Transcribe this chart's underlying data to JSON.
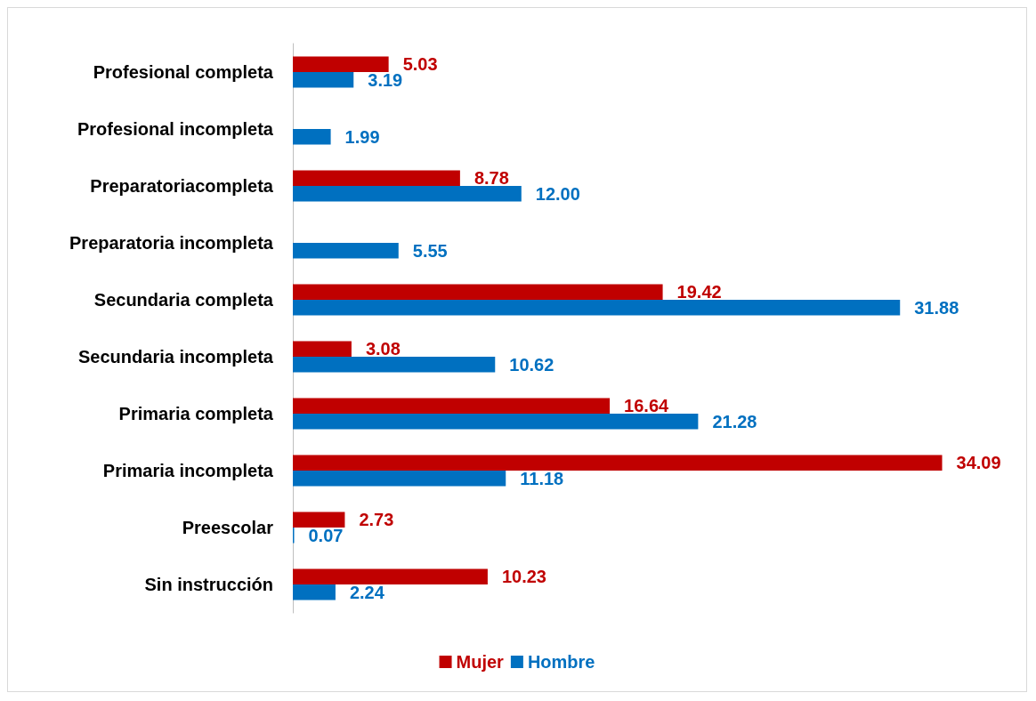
{
  "chart_data": {
    "type": "bar",
    "orientation": "horizontal",
    "categories": [
      "Profesional completa",
      "Profesional incompleta",
      "Preparatoriacompleta",
      "Preparatoria incompleta",
      "Secundaria completa",
      "Secundaria incompleta",
      "Primaria completa",
      "Primaria incompleta",
      "Preescolar",
      "Sin instrucción"
    ],
    "series": [
      {
        "name": "Mujer",
        "color": "#c00000",
        "values": [
          5.03,
          null,
          8.78,
          null,
          19.42,
          3.08,
          16.64,
          34.09,
          2.73,
          10.23
        ],
        "value_labels": [
          "5.03",
          null,
          "8.78",
          null,
          "19.42",
          "3.08",
          "16.64",
          "34.09",
          "2.73",
          "10.23"
        ]
      },
      {
        "name": "Hombre",
        "color": "#0070c0",
        "values": [
          3.19,
          1.99,
          12.0,
          5.55,
          31.88,
          10.62,
          21.28,
          11.18,
          0.07,
          2.24
        ],
        "value_labels": [
          "3.19",
          "1.99",
          "12.00",
          "5.55",
          "31.88",
          "10.62",
          "21.28",
          "11.18",
          "0.07",
          "2.24"
        ]
      }
    ],
    "legend": "bottom",
    "grid": false,
    "tick_labels": "y"
  }
}
